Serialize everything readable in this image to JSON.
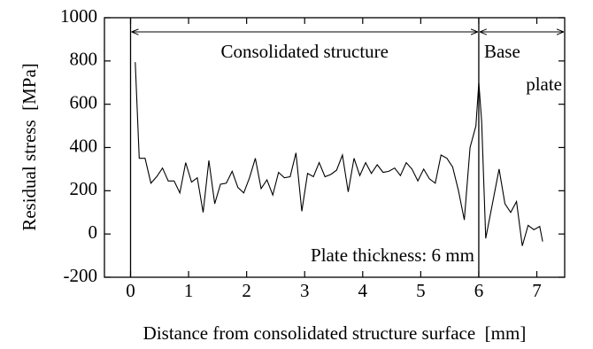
{
  "chart_data": {
    "type": "line",
    "xlabel": "Distance from consolidated structure surface  [mm]",
    "ylabel": "Residual stress  [MPa]",
    "annotations": [
      "Consolidated structure",
      "Base",
      "plate",
      "Plate thickness: 6 mm"
    ],
    "vlines": [
      0,
      6
    ],
    "x": [
      0.08,
      0.15,
      0.25,
      0.35,
      0.45,
      0.55,
      0.65,
      0.75,
      0.85,
      0.95,
      1.05,
      1.15,
      1.25,
      1.35,
      1.45,
      1.55,
      1.65,
      1.75,
      1.85,
      1.95,
      2.05,
      2.15,
      2.25,
      2.35,
      2.45,
      2.55,
      2.65,
      2.75,
      2.85,
      2.95,
      3.05,
      3.15,
      3.25,
      3.35,
      3.45,
      3.55,
      3.65,
      3.75,
      3.85,
      3.95,
      4.05,
      4.15,
      4.25,
      4.35,
      4.45,
      4.55,
      4.65,
      4.75,
      4.85,
      4.95,
      5.05,
      5.15,
      5.25,
      5.35,
      5.45,
      5.55,
      5.65,
      5.75,
      5.85,
      5.95,
      6.0,
      6.05,
      6.12,
      6.25,
      6.35,
      6.45,
      6.55,
      6.65,
      6.75,
      6.85,
      6.95,
      7.05,
      7.1
    ],
    "series": [
      {
        "color": "#000000",
        "values": [
          795,
          350,
          350,
          235,
          265,
          305,
          245,
          245,
          190,
          330,
          240,
          260,
          100,
          340,
          140,
          230,
          235,
          290,
          215,
          190,
          260,
          350,
          210,
          250,
          180,
          285,
          260,
          265,
          375,
          105,
          280,
          265,
          330,
          265,
          275,
          295,
          365,
          195,
          350,
          270,
          330,
          280,
          320,
          285,
          290,
          305,
          270,
          330,
          300,
          245,
          300,
          255,
          235,
          365,
          350,
          310,
          200,
          65,
          400,
          500,
          700,
          520,
          -20,
          160,
          300,
          140,
          100,
          150,
          -55,
          40,
          20,
          35,
          -35
        ]
      }
    ],
    "xlim": [
      -0.45,
      7.48
    ],
    "xticks": [
      0,
      1,
      2,
      3,
      4,
      5,
      6,
      7
    ],
    "ylim": [
      -200,
      1000
    ],
    "yticks": [
      -200,
      0,
      200,
      400,
      600,
      800,
      1000
    ]
  }
}
